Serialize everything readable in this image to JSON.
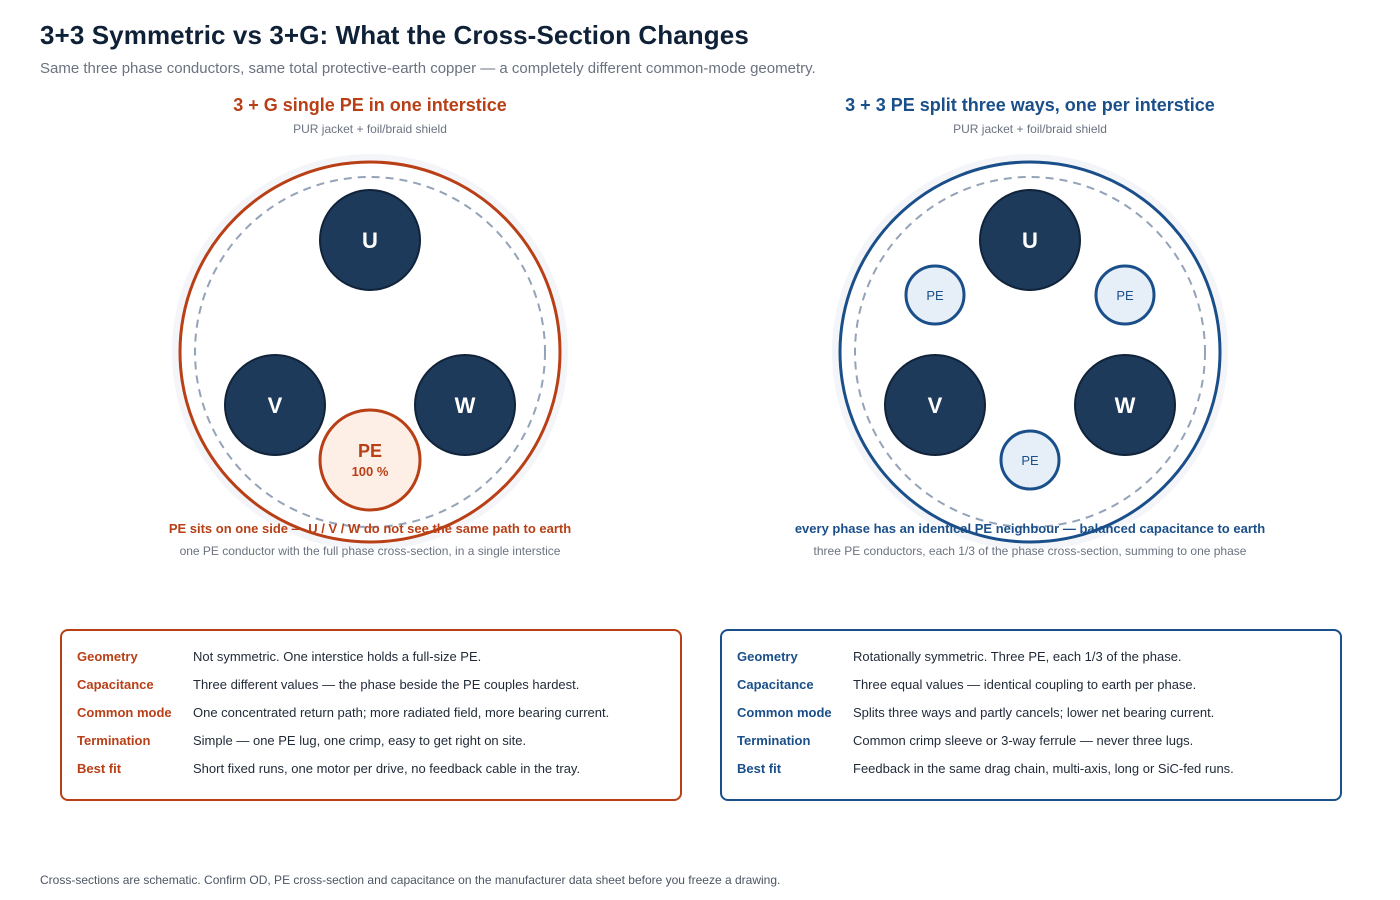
{
  "header": {
    "title": "3+3 Symmetric vs 3+G: What the Cross-Section Changes",
    "subtitle": "Same three phase conductors, same total protective-earth copper — a completely different common-mode geometry."
  },
  "colors": {
    "orange_accent": "#b83f16",
    "blue_accent": "#1a4f8a",
    "phase_fill": "#1e3a5a",
    "pe_fill_orange": "#fdeee6",
    "pe_fill_blue": "#e6eef8"
  },
  "left_panel": {
    "heading": "3 + G single PE in one interstice",
    "jacket": "PUR jacket + foil/braid shield",
    "phases": [
      "U",
      "V",
      "W"
    ],
    "pe_label": "PE",
    "pe_share": "100 %",
    "caption": "PE sits on one side — U / V / W do not see the same path to earth",
    "subcaption": "one PE conductor with the full phase cross-section, in a single interstice"
  },
  "right_panel": {
    "heading": "3 + 3 PE split three ways, one per interstice",
    "jacket": "PUR jacket + foil/braid shield",
    "phases": [
      "U",
      "V",
      "W"
    ],
    "pe_labels": [
      "PE",
      "PE",
      "PE"
    ],
    "caption": "every phase has an identical PE neighbour — balanced capacitance to earth",
    "subcaption": "three PE conductors, each 1/3 of the phase cross-section, summing to one phase"
  },
  "left_card": {
    "rows": [
      {
        "key": "Geometry",
        "value": "Not symmetric. One interstice holds a full-size PE."
      },
      {
        "key": "Capacitance",
        "value": "Three different values — the phase beside the PE couples hardest."
      },
      {
        "key": "Common mode",
        "value": "One concentrated return path; more radiated field, more bearing current."
      },
      {
        "key": "Termination",
        "value": "Simple — one PE lug, one crimp, easy to get right on site."
      },
      {
        "key": "Best fit",
        "value": "Short fixed runs, one motor per drive, no feedback cable in the tray."
      }
    ]
  },
  "right_card": {
    "rows": [
      {
        "key": "Geometry",
        "value": "Rotationally symmetric. Three PE, each 1/3 of the phase."
      },
      {
        "key": "Capacitance",
        "value": "Three equal values — identical coupling to earth per phase."
      },
      {
        "key": "Common mode",
        "value": "Splits three ways and partly cancels; lower net bearing current."
      },
      {
        "key": "Termination",
        "value": "Common crimp sleeve or 3-way ferrule — never three lugs."
      },
      {
        "key": "Best fit",
        "value": "Feedback in the same drag chain, multi-axis, long or SiC-fed runs."
      }
    ]
  },
  "footer": {
    "note": "Cross-sections are schematic. Confirm OD, PE cross-section and capacitance on the manufacturer data sheet before you freeze a drawing."
  }
}
